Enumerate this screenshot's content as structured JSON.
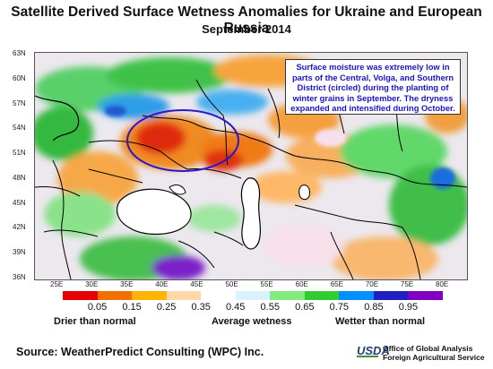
{
  "title": "Satellite Derived Surface Wetness Anomalies for Ukraine and European Russia",
  "subtitle": "September 2014",
  "callout": "Surface moisture was extremely low in parts of the Central, Volga, and Southern District (circled) during the planting of winter grains in September.  The dryness expanded and intensified during October.",
  "map": {
    "lat_labels": [
      "63N",
      "60N",
      "57N",
      "54N",
      "51N",
      "48N",
      "45N",
      "42N",
      "39N",
      "36N"
    ],
    "lon_labels": [
      "25E",
      "30E",
      "35E",
      "40E",
      "45E",
      "50E",
      "55E",
      "60E",
      "65E",
      "70E",
      "75E",
      "80E"
    ],
    "highlight": "circled region"
  },
  "legend": {
    "values": [
      "0.05",
      "0.15",
      "0.25",
      "0.35",
      "0.45",
      "0.55",
      "0.65",
      "0.75",
      "0.85",
      "0.95"
    ],
    "colors": [
      "#e80000",
      "#f07000",
      "#ffb400",
      "#ffd8a8",
      "#ffffff",
      "#d8f2ff",
      "#80ec80",
      "#30cc30",
      "#0090ff",
      "#2020c0",
      "#8000c0"
    ],
    "caption_low": "Drier than normal",
    "caption_mid": "Average wetness",
    "caption_high": "Wetter than normal"
  },
  "source": "Source: WeatherPredict Consulting (WPC) Inc.",
  "usda": "USDA",
  "agency_line1": "Office of Global Analysis",
  "agency_line2": "Foreign Agricultural Service"
}
